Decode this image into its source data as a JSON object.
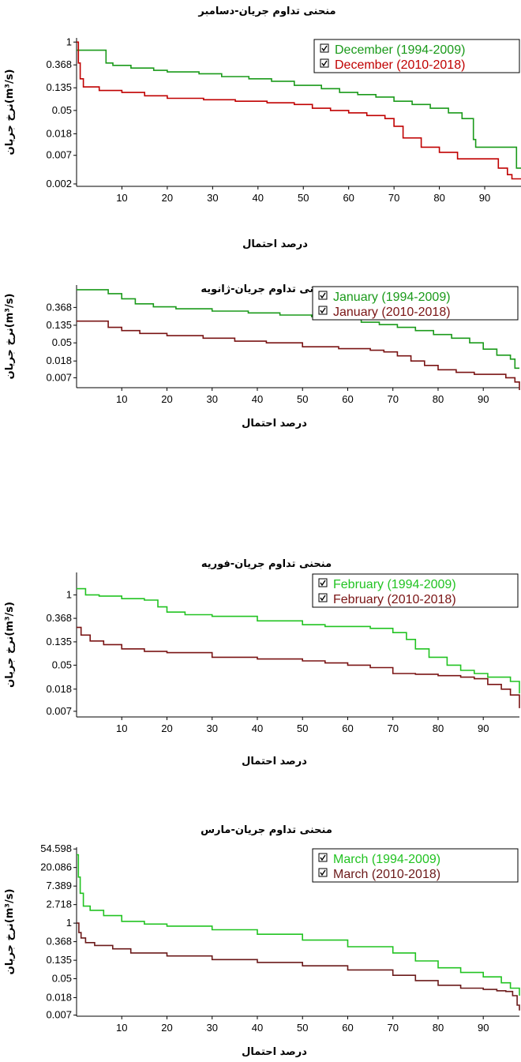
{
  "colors": {
    "green": "#1a9a1a",
    "light_green": "#22c322",
    "red": "#c00000",
    "dark_red": "#7a1414",
    "axis": "#000000"
  },
  "chart_data": [
    {
      "type": "line",
      "title": "منحنی تداوم جریان-دسامبر",
      "xlabel": "درصد احتمال",
      "ylabel": "نرخ جریان(m³/s)",
      "y_scale": "log",
      "xlim": [
        0,
        98
      ],
      "ylim": [
        0.0018,
        1.2
      ],
      "x_ticks": [
        10,
        20,
        30,
        40,
        50,
        60,
        70,
        80,
        90
      ],
      "y_ticks": [
        "1",
        "0.368",
        "0.135",
        "0.05",
        "0.018",
        "0.007",
        "0.002"
      ],
      "y_tick_values": [
        1,
        0.368,
        0.135,
        0.05,
        0.018,
        0.007,
        0.002
      ],
      "legend": "top-right",
      "series": [
        {
          "name": "December (1994-2009)",
          "color": "#1a9a1a",
          "x": [
            0,
            0.5,
            6,
            6.5,
            8,
            12,
            17,
            20,
            27,
            32,
            38,
            43,
            48,
            54,
            58,
            62,
            66,
            70,
            74,
            78,
            82,
            85,
            87.5,
            88,
            96,
            97,
            98
          ],
          "y": [
            0.7,
            0.7,
            0.7,
            0.4,
            0.36,
            0.32,
            0.29,
            0.27,
            0.25,
            0.22,
            0.2,
            0.18,
            0.15,
            0.13,
            0.11,
            0.1,
            0.09,
            0.075,
            0.065,
            0.055,
            0.045,
            0.035,
            0.014,
            0.01,
            0.01,
            0.004,
            0.004
          ]
        },
        {
          "name": "December (2010-2018)",
          "color": "#c00000",
          "x": [
            0,
            0.4,
            0.8,
            1.5,
            5,
            10,
            15,
            20,
            28,
            35,
            42,
            48,
            52,
            56,
            60,
            64,
            68,
            70,
            72,
            76,
            80,
            84,
            88,
            93,
            95,
            96,
            98
          ],
          "y": [
            1.0,
            0.4,
            0.2,
            0.14,
            0.12,
            0.11,
            0.095,
            0.085,
            0.08,
            0.075,
            0.07,
            0.065,
            0.055,
            0.05,
            0.045,
            0.04,
            0.035,
            0.025,
            0.015,
            0.01,
            0.008,
            0.006,
            0.006,
            0.004,
            0.003,
            0.0025,
            0.0025
          ]
        }
      ]
    },
    {
      "type": "line",
      "title": "منحنی تداوم جریان-ژانویه",
      "xlabel": "درصد احتمال",
      "ylabel": "نرخ جریان(m³/s)",
      "y_scale": "log",
      "xlim": [
        0,
        98
      ],
      "ylim": [
        0.004,
        1.3
      ],
      "x_ticks": [
        10,
        20,
        30,
        40,
        50,
        60,
        70,
        80,
        90
      ],
      "y_ticks": [
        "0.368",
        "0.135",
        "0.05",
        "0.018",
        "0.007"
      ],
      "y_tick_values": [
        0.368,
        0.135,
        0.05,
        0.018,
        0.007
      ],
      "legend": "top-right",
      "series": [
        {
          "name": "January (1994-2009)",
          "color": "#1a9a1a",
          "x": [
            0,
            5,
            7,
            10,
            13,
            17,
            22,
            30,
            38,
            45,
            52,
            58,
            63,
            67,
            71,
            75,
            79,
            83,
            87,
            90,
            93,
            96,
            97,
            98
          ],
          "y": [
            1.0,
            1.0,
            0.8,
            0.6,
            0.45,
            0.38,
            0.34,
            0.3,
            0.27,
            0.24,
            0.22,
            0.19,
            0.16,
            0.14,
            0.12,
            0.1,
            0.08,
            0.065,
            0.05,
            0.035,
            0.025,
            0.02,
            0.012,
            0.012
          ]
        },
        {
          "name": "January (2010-2018)",
          "color": "#7a1414",
          "x": [
            0,
            5,
            7,
            10,
            14,
            20,
            28,
            35,
            42,
            50,
            58,
            65,
            68,
            71,
            74,
            77,
            80,
            84,
            88,
            92,
            95,
            97,
            98
          ],
          "y": [
            0.17,
            0.17,
            0.12,
            0.1,
            0.085,
            0.075,
            0.065,
            0.055,
            0.05,
            0.04,
            0.036,
            0.033,
            0.03,
            0.024,
            0.018,
            0.014,
            0.011,
            0.0095,
            0.0085,
            0.0085,
            0.007,
            0.0055,
            0.0035
          ]
        }
      ]
    },
    {
      "type": "line",
      "title": "منحنی تداوم جریان-فوریه",
      "xlabel": "درصد احتمال",
      "ylabel": "نرخ جریان(m³/s)",
      "y_scale": "log",
      "xlim": [
        0,
        98
      ],
      "ylim": [
        0.0055,
        2.6
      ],
      "x_ticks": [
        10,
        20,
        30,
        40,
        50,
        60,
        70,
        80,
        90
      ],
      "y_ticks": [
        "1",
        "0.368",
        "0.135",
        "0.05",
        "0.018",
        "0.007"
      ],
      "y_tick_values": [
        1,
        0.368,
        0.135,
        0.05,
        0.018,
        0.007
      ],
      "legend": "top-right",
      "series": [
        {
          "name": "February (1994-2009)",
          "color": "#22c322",
          "x": [
            0,
            2,
            5,
            10,
            15,
            18,
            20,
            24,
            30,
            40,
            50,
            55,
            60,
            65,
            70,
            73,
            75,
            78,
            82,
            85,
            88,
            91,
            94,
            96,
            98
          ],
          "y": [
            1.3,
            1.0,
            0.95,
            0.85,
            0.8,
            0.6,
            0.48,
            0.43,
            0.4,
            0.33,
            0.28,
            0.26,
            0.26,
            0.24,
            0.2,
            0.15,
            0.1,
            0.07,
            0.05,
            0.04,
            0.035,
            0.03,
            0.03,
            0.025,
            0.015
          ]
        },
        {
          "name": "February (2010-2018)",
          "color": "#7a1414",
          "x": [
            0,
            1,
            3,
            6,
            10,
            15,
            20,
            30,
            40,
            50,
            55,
            60,
            65,
            70,
            75,
            80,
            85,
            88,
            91,
            94,
            96,
            97,
            98
          ],
          "y": [
            0.25,
            0.18,
            0.14,
            0.12,
            0.1,
            0.09,
            0.085,
            0.07,
            0.065,
            0.06,
            0.055,
            0.05,
            0.045,
            0.035,
            0.034,
            0.032,
            0.03,
            0.028,
            0.022,
            0.018,
            0.014,
            0.014,
            0.008
          ]
        }
      ]
    },
    {
      "type": "line",
      "title": "منحنی تداوم جریان-مارس",
      "xlabel": "درصد احتمال",
      "ylabel": "نرخ جریان(m³/s)",
      "y_scale": "log",
      "xlim": [
        0,
        98
      ],
      "ylim": [
        0.0066,
        60
      ],
      "x_ticks": [
        10,
        20,
        30,
        40,
        50,
        60,
        70,
        80,
        90
      ],
      "y_ticks": [
        "54.598",
        "20.086",
        "7.389",
        "2.718",
        "1",
        "0.368",
        "0.135",
        "0.05",
        "0.018",
        "0.007"
      ],
      "y_tick_values": [
        54.598,
        20.086,
        7.389,
        2.718,
        1,
        0.368,
        0.135,
        0.05,
        0.018,
        0.007
      ],
      "legend": "top-right",
      "series": [
        {
          "name": "March (1994-2009)",
          "color": "#22c322",
          "x": [
            0,
            0.4,
            0.8,
            1.5,
            3,
            6,
            10,
            15,
            20,
            30,
            40,
            50,
            60,
            70,
            75,
            80,
            85,
            90,
            94,
            96,
            98
          ],
          "y": [
            40,
            12,
            5,
            2.5,
            2.0,
            1.5,
            1.1,
            0.95,
            0.85,
            0.7,
            0.55,
            0.4,
            0.28,
            0.2,
            0.13,
            0.09,
            0.07,
            0.055,
            0.04,
            0.03,
            0.02
          ]
        },
        {
          "name": "March (2010-2018)",
          "color": "#6b1a1a",
          "x": [
            0,
            0.5,
            1,
            2,
            4,
            8,
            12,
            20,
            30,
            40,
            50,
            60,
            70,
            75,
            80,
            85,
            90,
            93,
            95,
            96.5,
            97.5,
            98
          ],
          "y": [
            1.0,
            0.6,
            0.45,
            0.35,
            0.3,
            0.25,
            0.2,
            0.17,
            0.14,
            0.12,
            0.1,
            0.08,
            0.06,
            0.045,
            0.035,
            0.03,
            0.028,
            0.026,
            0.025,
            0.02,
            0.012,
            0.009
          ]
        }
      ]
    }
  ]
}
